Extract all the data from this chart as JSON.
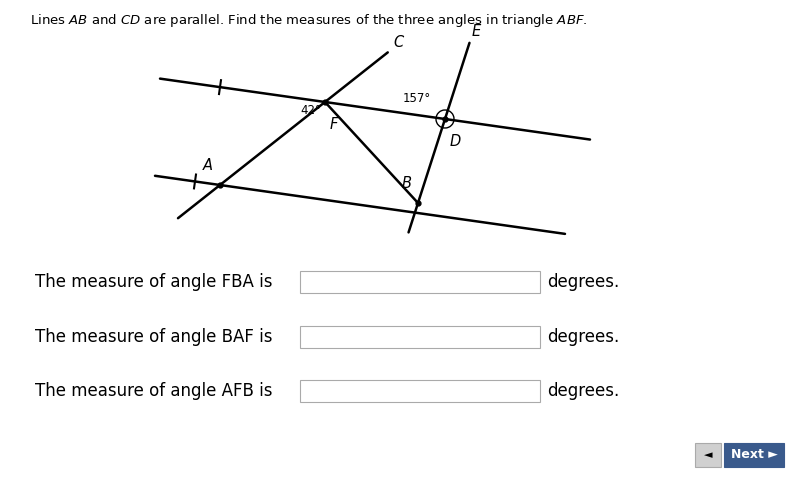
{
  "bg_color": "#ffffff",
  "title_text": "Lines $\\mathit{AB}$ and $\\mathit{CD}$ are parallel. Find the measures of the three angles in triangle $\\mathit{ABF}$.",
  "title_fontsize": 9.5,
  "fig_width": 8.0,
  "fig_height": 4.87,
  "q1": "The measure of angle FBA is",
  "q2": "The measure of angle BAF is",
  "q3": "The measure of angle AFB is",
  "q_suffix": "degrees.",
  "box_edge": "#aaaaaa",
  "next_btn_color": "#3a5a8c",
  "next_btn_text": "Next ►",
  "back_btn_color": "#cccccc",
  "back_btn_text": "◄",
  "lw": 1.8
}
